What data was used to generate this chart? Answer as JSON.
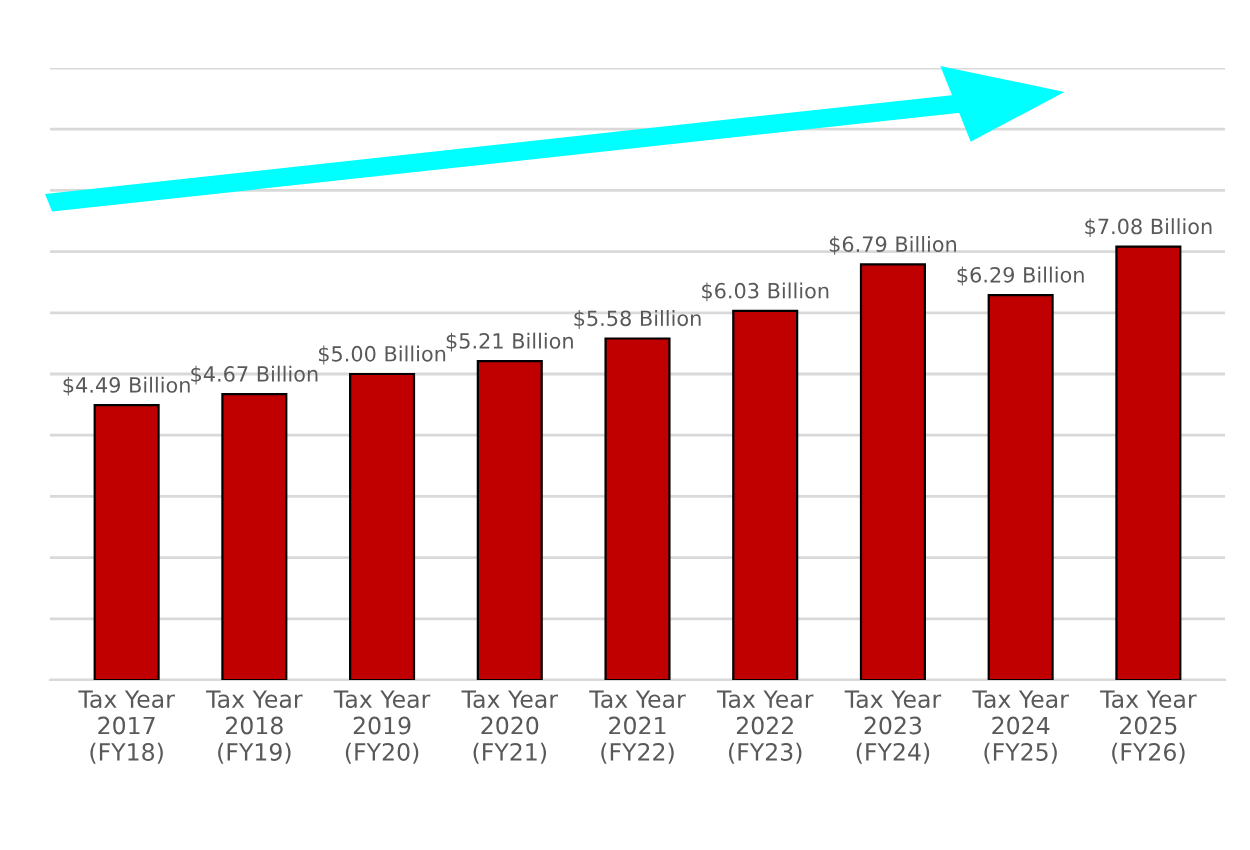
{
  "chart_data": {
    "type": "bar",
    "categories": [
      "Tax Year\n2017\n(FY18)",
      "Tax Year\n2018\n(FY19)",
      "Tax Year\n2019\n(FY20)",
      "Tax Year\n2020\n(FY21)",
      "Tax Year\n2021\n(FY22)",
      "Tax Year\n2022\n(FY23)",
      "Tax Year\n2023\n(FY24)",
      "Tax Year\n2024\n(FY25)",
      "Tax Year\n2025\n(FY26)"
    ],
    "values": [
      4.49,
      4.67,
      5.0,
      5.21,
      5.58,
      6.03,
      6.79,
      6.29,
      7.08
    ],
    "value_labels": [
      "$4.49 Billion",
      "$4.67 Billion",
      "$5.00 Billion",
      "$5.21 Billion",
      "$5.58 Billion",
      "$6.03 Billion",
      "$6.79 Billion",
      "$6.29 Billion",
      "$7.08 Billion"
    ],
    "color": "#c00000",
    "ylim": [
      0,
      10
    ],
    "yticks": [
      {
        "value": 0,
        "label": null
      },
      {
        "value": 1,
        "label": null
      },
      {
        "value": 2,
        "label": null
      },
      {
        "value": 3,
        "label": null
      },
      {
        "value": 4,
        "label": null
      },
      {
        "value": 5,
        "label": null
      },
      {
        "value": 6,
        "label": null
      },
      {
        "value": 7,
        "label": null
      },
      {
        "value": 8,
        "label": null
      },
      {
        "value": 9,
        "label": null
      },
      {
        "value": 10,
        "label": null
      }
    ],
    "grid": "y",
    "tick_labels": "x"
  }
}
